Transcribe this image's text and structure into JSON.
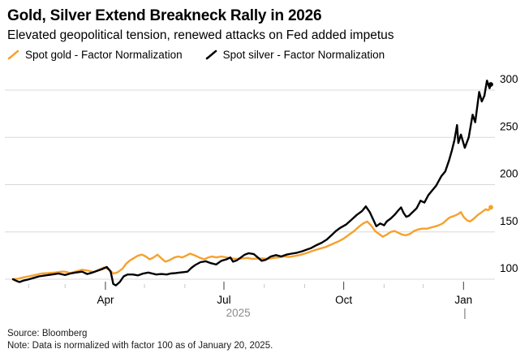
{
  "header": {
    "title": "Gold, Silver Extend Breakneck Rally in 2026",
    "subtitle": "Elevated geopolitical tension, renewed attacks on Fed added impetus"
  },
  "legend": [
    {
      "label": "Spot gold - Factor Normalization",
      "color": "#F5A12E"
    },
    {
      "label": "Spot silver - Factor Normalization",
      "color": "#000000"
    }
  ],
  "footer": {
    "source": "Source: Bloomberg",
    "note": "Note: Data is normalized with factor 100 as of January 20, 2025."
  },
  "colors": {
    "gold": "#F5A12E",
    "silver": "#000000",
    "gridline": "#D8D8D8",
    "minor_tick": "#C9C9C9",
    "major_tick": "#3C3C3C",
    "year_text": "#8A8A8A"
  },
  "chart_data": {
    "type": "line",
    "title": "Gold, Silver Extend Breakneck Rally in 2026",
    "x_unit": "days since 2025-01-20 (normalization date)",
    "xlim": [
      0,
      367
    ],
    "ylim": [
      88,
      315
    ],
    "grid": "horizontal",
    "legend_position": "top-left",
    "y_ticks": [
      100,
      150,
      200,
      250,
      300
    ],
    "x_ticks": [
      {
        "d": 12
      },
      {
        "d": 40
      },
      {
        "d": 71,
        "label": "Apr"
      },
      {
        "d": 101
      },
      {
        "d": 132
      },
      {
        "d": 162,
        "label": "Jul"
      },
      {
        "d": 193
      },
      {
        "d": 224
      },
      {
        "d": 254,
        "label": "Oct"
      },
      {
        "d": 285
      },
      {
        "d": 315
      },
      {
        "d": 346,
        "label": "Jan"
      }
    ],
    "year_label": {
      "text": "2025",
      "d": 173
    },
    "year_divider_d": 347,
    "series": [
      {
        "name": "Spot gold - Factor Normalization",
        "color": "#F5A12E",
        "end_dot": true,
        "points": [
          [
            0,
            100
          ],
          [
            4,
            100.5
          ],
          [
            8,
            102
          ],
          [
            12,
            103
          ],
          [
            17,
            104.5
          ],
          [
            22,
            106
          ],
          [
            27,
            106.5
          ],
          [
            32,
            107
          ],
          [
            37,
            108
          ],
          [
            40,
            108
          ],
          [
            44,
            106.5
          ],
          [
            48,
            108
          ],
          [
            53,
            110
          ],
          [
            58,
            109
          ],
          [
            62,
            107.5
          ],
          [
            66,
            110
          ],
          [
            70,
            112.5
          ],
          [
            74,
            110
          ],
          [
            77,
            106
          ],
          [
            80,
            107
          ],
          [
            84,
            111
          ],
          [
            87,
            116.5
          ],
          [
            90,
            120
          ],
          [
            93,
            122.5
          ],
          [
            96,
            125
          ],
          [
            99,
            126
          ],
          [
            102,
            124
          ],
          [
            105,
            121
          ],
          [
            108,
            123
          ],
          [
            111,
            126
          ],
          [
            114,
            122
          ],
          [
            117,
            118.5
          ],
          [
            120,
            120
          ],
          [
            124,
            123
          ],
          [
            127,
            124
          ],
          [
            130,
            123
          ],
          [
            133,
            125
          ],
          [
            136,
            127
          ],
          [
            140,
            125
          ],
          [
            143,
            123
          ],
          [
            147,
            121
          ],
          [
            150,
            123
          ],
          [
            153,
            124
          ],
          [
            156,
            123
          ],
          [
            160,
            124
          ],
          [
            164,
            123
          ],
          [
            168,
            122
          ],
          [
            172,
            121.5
          ],
          [
            176,
            122
          ],
          [
            180,
            122.5
          ],
          [
            184,
            121.5
          ],
          [
            188,
            122
          ],
          [
            192,
            122
          ],
          [
            196,
            121.5
          ],
          [
            200,
            122.5
          ],
          [
            204,
            123
          ],
          [
            208,
            124
          ],
          [
            212,
            123.5
          ],
          [
            216,
            124.5
          ],
          [
            220,
            125.5
          ],
          [
            225,
            127.5
          ],
          [
            230,
            130
          ],
          [
            235,
            132
          ],
          [
            240,
            134
          ],
          [
            245,
            137
          ],
          [
            250,
            140
          ],
          [
            254,
            143
          ],
          [
            258,
            147
          ],
          [
            262,
            151
          ],
          [
            266,
            156
          ],
          [
            269,
            159
          ],
          [
            272,
            161
          ],
          [
            275,
            157
          ],
          [
            278,
            151
          ],
          [
            281,
            148
          ],
          [
            284,
            145
          ],
          [
            287,
            147
          ],
          [
            290,
            150
          ],
          [
            293,
            151
          ],
          [
            296,
            149
          ],
          [
            299,
            147
          ],
          [
            302,
            146.5
          ],
          [
            305,
            148
          ],
          [
            308,
            151
          ],
          [
            311,
            152.5
          ],
          [
            314,
            153.5
          ],
          [
            318,
            153.5
          ],
          [
            322,
            155
          ],
          [
            326,
            156.5
          ],
          [
            330,
            159
          ],
          [
            335,
            165
          ],
          [
            339,
            167
          ],
          [
            342,
            169
          ],
          [
            344,
            171
          ],
          [
            346,
            166
          ],
          [
            349,
            162
          ],
          [
            351,
            161
          ],
          [
            354,
            164
          ],
          [
            357,
            168
          ],
          [
            360,
            171
          ],
          [
            363,
            174
          ],
          [
            365,
            173
          ],
          [
            367,
            176
          ]
        ]
      },
      {
        "name": "Spot silver - Factor Normalization",
        "color": "#000000",
        "end_dot": true,
        "points": [
          [
            0,
            100
          ],
          [
            3,
            98
          ],
          [
            5,
            97
          ],
          [
            8,
            98.5
          ],
          [
            11,
            99.5
          ],
          [
            15,
            101
          ],
          [
            20,
            103
          ],
          [
            25,
            104
          ],
          [
            30,
            105
          ],
          [
            35,
            106
          ],
          [
            40,
            104.5
          ],
          [
            44,
            106
          ],
          [
            48,
            107
          ],
          [
            53,
            108
          ],
          [
            57,
            105.5
          ],
          [
            61,
            107
          ],
          [
            65,
            109
          ],
          [
            69,
            111
          ],
          [
            72,
            113
          ],
          [
            75,
            108
          ],
          [
            77,
            95
          ],
          [
            79,
            93.5
          ],
          [
            82,
            97
          ],
          [
            85,
            103
          ],
          [
            88,
            105
          ],
          [
            92,
            105
          ],
          [
            96,
            104
          ],
          [
            100,
            106
          ],
          [
            104,
            107
          ],
          [
            107,
            106
          ],
          [
            110,
            105
          ],
          [
            114,
            105.5
          ],
          [
            118,
            105
          ],
          [
            121,
            106
          ],
          [
            125,
            106.5
          ],
          [
            128,
            107
          ],
          [
            131,
            107.5
          ],
          [
            134,
            108
          ],
          [
            137,
            112
          ],
          [
            140,
            115
          ],
          [
            144,
            118
          ],
          [
            148,
            119
          ],
          [
            152,
            117
          ],
          [
            156,
            115.5
          ],
          [
            160,
            119.5
          ],
          [
            164,
            121
          ],
          [
            167,
            123
          ],
          [
            169,
            118.5
          ],
          [
            172,
            120
          ],
          [
            175,
            123
          ],
          [
            178,
            126
          ],
          [
            181,
            127.5
          ],
          [
            185,
            126.5
          ],
          [
            188,
            123
          ],
          [
            191,
            119.5
          ],
          [
            194,
            120.5
          ],
          [
            198,
            124
          ],
          [
            202,
            125.5
          ],
          [
            206,
            124
          ],
          [
            210,
            126
          ],
          [
            214,
            127
          ],
          [
            218,
            128
          ],
          [
            222,
            129.5
          ],
          [
            225,
            131
          ],
          [
            229,
            133
          ],
          [
            233,
            136
          ],
          [
            237,
            138.5
          ],
          [
            241,
            142
          ],
          [
            245,
            147
          ],
          [
            248,
            151
          ],
          [
            251,
            154
          ],
          [
            256,
            158
          ],
          [
            260,
            163
          ],
          [
            264,
            168
          ],
          [
            268,
            172
          ],
          [
            271,
            177
          ],
          [
            274,
            171
          ],
          [
            277,
            162
          ],
          [
            279,
            156
          ],
          [
            282,
            159
          ],
          [
            285,
            157
          ],
          [
            287,
            161
          ],
          [
            290,
            164
          ],
          [
            293,
            168
          ],
          [
            296,
            173
          ],
          [
            298,
            176
          ],
          [
            300,
            170
          ],
          [
            302,
            166
          ],
          [
            304,
            167
          ],
          [
            307,
            171
          ],
          [
            310,
            175
          ],
          [
            313,
            183
          ],
          [
            316,
            181
          ],
          [
            319,
            189
          ],
          [
            322,
            194
          ],
          [
            325,
            199
          ],
          [
            327,
            204
          ],
          [
            329,
            209
          ],
          [
            332,
            214
          ],
          [
            335,
            226
          ],
          [
            337,
            236
          ],
          [
            339,
            247
          ],
          [
            341,
            263
          ],
          [
            342,
            244
          ],
          [
            344,
            253
          ],
          [
            347,
            239
          ],
          [
            350,
            250
          ],
          [
            353,
            274
          ],
          [
            355,
            266
          ],
          [
            358,
            298
          ],
          [
            360,
            288
          ],
          [
            362,
            294
          ],
          [
            364,
            310
          ],
          [
            366,
            302
          ],
          [
            367,
            306
          ]
        ]
      }
    ]
  }
}
